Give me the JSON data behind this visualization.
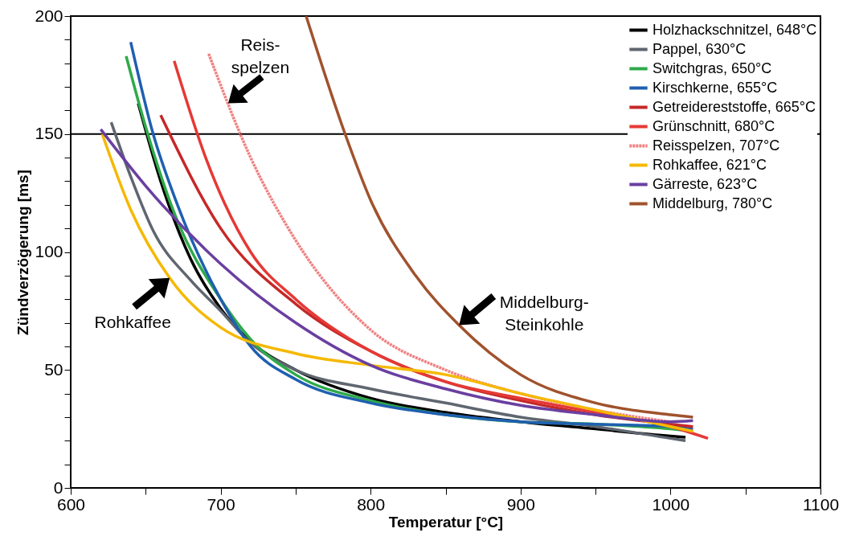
{
  "chart_data": {
    "type": "line",
    "xlabel": "Temperatur [°C]",
    "ylabel": "Zündverzögerung [ms]",
    "xlim": [
      600,
      1100
    ],
    "ylim": [
      0,
      200
    ],
    "xticks": [
      600,
      {
        "value": 650,
        "label": null
      },
      700,
      {
        "value": 750,
        "label": null
      },
      800,
      {
        "value": 850,
        "label": null
      },
      900,
      {
        "value": 950,
        "label": null
      },
      1000,
      {
        "value": 1050,
        "label": null
      },
      1100
    ],
    "yticks": [
      0,
      {
        "value": 10,
        "label": null
      },
      {
        "value": 20,
        "label": null
      },
      {
        "value": 30,
        "label": null
      },
      {
        "value": 40,
        "label": null
      },
      50,
      {
        "value": 60,
        "label": null
      },
      {
        "value": 70,
        "label": null
      },
      {
        "value": 80,
        "label": null
      },
      {
        "value": 90,
        "label": null
      },
      100,
      {
        "value": 110,
        "label": null
      },
      {
        "value": 120,
        "label": null
      },
      {
        "value": 130,
        "label": null
      },
      {
        "value": 140,
        "label": null
      },
      150,
      {
        "value": 160,
        "label": null
      },
      {
        "value": 170,
        "label": null
      },
      {
        "value": 180,
        "label": null
      },
      {
        "value": 190,
        "label": null
      },
      200
    ],
    "grid": false,
    "legend": "top right",
    "line_style": "solid",
    "marker": "none",
    "ref_lines": [
      {
        "axis": "y",
        "value": 150,
        "color": "#000000"
      }
    ],
    "series": [
      {
        "name": "Holzhackschnitzel, 648°C",
        "color": "#000000",
        "x": [
          645,
          660,
          680,
          700,
          720,
          750,
          800,
          850,
          900,
          950,
          1000,
          1010
        ],
        "values": [
          163,
          130,
          97,
          76,
          62,
          50,
          38,
          32,
          28,
          25,
          22,
          21.5
        ]
      },
      {
        "name": "Pappel, 630°C",
        "color": "#5f6670",
        "x": [
          627,
          640,
          655,
          680,
          700,
          719,
          750,
          800,
          850,
          900,
          950,
          1000,
          1010
        ],
        "values": [
          155,
          132,
          109,
          88,
          75,
          62,
          50,
          42,
          36,
          30,
          26,
          21,
          20
        ]
      },
      {
        "name": "Switchgras, 650°C",
        "color": "#2eaa4a",
        "x": [
          637,
          650,
          670,
          700,
          720,
          750,
          800,
          850,
          900,
          950,
          1000,
          1015
        ],
        "values": [
          183,
          153,
          115,
          80,
          63,
          48,
          37,
          31,
          28,
          27,
          25,
          24
        ]
      },
      {
        "name": "Kirschkerne, 655°C",
        "color": "#1f5fb0",
        "x": [
          640,
          655,
          670,
          700,
          720,
          750,
          800,
          850,
          900,
          950,
          1000,
          1015
        ],
        "values": [
          189,
          150,
          122,
          80,
          60,
          46,
          36,
          31,
          28,
          27,
          26,
          25
        ]
      },
      {
        "name": "Getreidereststoffe, 665°C",
        "color": "#c62828",
        "x": [
          660,
          700,
          750,
          800,
          850,
          900,
          950,
          1000,
          1015
        ],
        "values": [
          158,
          110,
          78,
          58,
          45,
          37,
          31,
          27,
          26
        ]
      },
      {
        "name": "Grünschnitt, 680°C",
        "color": "#e53935",
        "x": [
          669,
          690,
          720,
          750,
          800,
          850,
          900,
          950,
          1000,
          1025
        ],
        "values": [
          181,
          140,
          100,
          80,
          58,
          45,
          38,
          32,
          26,
          21
        ]
      },
      {
        "name": "Reisspelzen, 707°C",
        "color": "#f08080",
        "line_style": "dotted",
        "x": [
          692,
          720,
          750,
          800,
          850,
          900,
          950,
          1000
        ],
        "values": [
          184,
          140,
          105,
          67,
          50,
          40,
          33,
          28
        ]
      },
      {
        "name": "Rohkaffee, 621°C",
        "color": "#f5b800",
        "x": [
          621,
          640,
          666,
          700,
          750,
          800,
          850,
          900,
          950,
          1000,
          1015
        ],
        "values": [
          150,
          118,
          89,
          68,
          57,
          52,
          48,
          40,
          33,
          26,
          24
        ]
      },
      {
        "name": "Gärreste, 623°C",
        "color": "#6a3fa0",
        "x": [
          620,
          650,
          700,
          750,
          800,
          850,
          900,
          950,
          1000,
          1015
        ],
        "values": [
          152,
          128,
          95,
          70,
          52,
          42,
          35,
          31,
          28,
          28.5
        ]
      },
      {
        "name": "Middelburg, 780°C",
        "color": "#a0522d",
        "x": [
          757,
          783,
          800,
          830,
          859,
          900,
          950,
          1000,
          1015
        ],
        "values": [
          200,
          150,
          122,
          90,
          69,
          48,
          36,
          31,
          30
        ]
      }
    ],
    "annotations": [
      {
        "text": "Reis-\nspelzen",
        "x": 705,
        "y": 163
      },
      {
        "text": "Rohkaffee",
        "x": 666,
        "y": 89
      },
      {
        "text": "Middelburg-\nSteinkohle",
        "x": 859,
        "y": 69
      }
    ]
  }
}
